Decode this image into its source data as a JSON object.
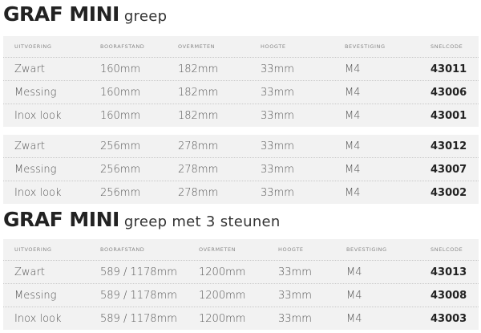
{
  "section1": {
    "title_bold": "GRAF MINI",
    "title_sub": "greep",
    "headers": [
      "UITVOERING",
      "BOORAFSTAND",
      "OVERMETEN",
      "HOOGTE",
      "BEVESTIGING",
      "SNELCODE"
    ],
    "groups": [
      [
        [
          "Zwart",
          "160mm",
          "182mm",
          "33mm",
          "M4",
          "43011"
        ],
        [
          "Messing",
          "160mm",
          "182mm",
          "33mm",
          "M4",
          "43006"
        ],
        [
          "Inox look",
          "160mm",
          "182mm",
          "33mm",
          "M4",
          "43001"
        ]
      ],
      [
        [
          "Zwart",
          "256mm",
          "278mm",
          "33mm",
          "M4",
          "43012"
        ],
        [
          "Messing",
          "256mm",
          "278mm",
          "33mm",
          "M4",
          "43007"
        ],
        [
          "Inox look",
          "256mm",
          "278mm",
          "33mm",
          "M4",
          "43002"
        ]
      ]
    ]
  },
  "section2": {
    "title_bold": "GRAF MINI",
    "title_sub": "greep met 3 steunen",
    "headers": [
      "UITVOERING",
      "BOORAFSTAND",
      "OVERMETEN",
      "HOOGTE",
      "BEVESTIGING",
      "SNELCODE"
    ],
    "rows": [
      [
        "Zwart",
        "589 / 1178mm",
        "1200mm",
        "33mm",
        "M4",
        "43013"
      ],
      [
        "Messing",
        "589 / 1178mm",
        "1200mm",
        "33mm",
        "M4",
        "43008"
      ],
      [
        "Inox look",
        "589 / 1178mm",
        "1200mm",
        "33mm",
        "M4",
        "43003"
      ]
    ]
  }
}
